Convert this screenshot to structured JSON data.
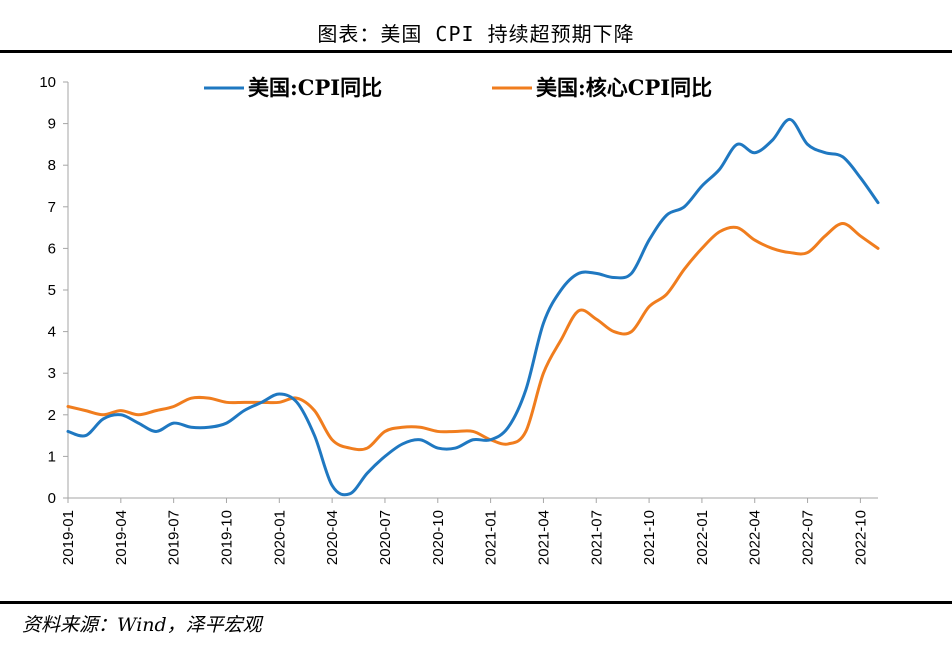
{
  "title": "图表：美国 CPI 持续超预期下降",
  "source": "资料来源：Wind，泽平宏观",
  "colors": {
    "cpi": "#1f78c1",
    "core": "#f07d1e",
    "axis": "#a6a6a6"
  },
  "chart_data": {
    "type": "line",
    "ylim": [
      0,
      10
    ],
    "y_ticks": [
      "0",
      "1",
      "2",
      "3",
      "4",
      "5",
      "6",
      "7",
      "8",
      "9",
      "10"
    ],
    "x_tick_labels": [
      "2019-01",
      "2019-04",
      "2019-07",
      "2019-10",
      "2020-01",
      "2020-04",
      "2020-07",
      "2020-10",
      "2021-01",
      "2021-04",
      "2021-07",
      "2021-10",
      "2022-01",
      "2022-04",
      "2022-07",
      "2022-10"
    ],
    "x": [
      "2019-01",
      "2019-02",
      "2019-03",
      "2019-04",
      "2019-05",
      "2019-06",
      "2019-07",
      "2019-08",
      "2019-09",
      "2019-10",
      "2019-11",
      "2019-12",
      "2020-01",
      "2020-02",
      "2020-03",
      "2020-04",
      "2020-05",
      "2020-06",
      "2020-07",
      "2020-08",
      "2020-09",
      "2020-10",
      "2020-11",
      "2020-12",
      "2021-01",
      "2021-02",
      "2021-03",
      "2021-04",
      "2021-05",
      "2021-06",
      "2021-07",
      "2021-08",
      "2021-09",
      "2021-10",
      "2021-11",
      "2021-12",
      "2022-01",
      "2022-02",
      "2022-03",
      "2022-04",
      "2022-05",
      "2022-06",
      "2022-07",
      "2022-08",
      "2022-09",
      "2022-10",
      "2022-11"
    ],
    "legend_position": "top",
    "series": [
      {
        "name": "美国:CPI同比",
        "values": [
          1.6,
          1.5,
          1.9,
          2.0,
          1.8,
          1.6,
          1.8,
          1.7,
          1.7,
          1.8,
          2.1,
          2.3,
          2.5,
          2.3,
          1.5,
          0.3,
          0.1,
          0.6,
          1.0,
          1.3,
          1.4,
          1.2,
          1.2,
          1.4,
          1.4,
          1.7,
          2.6,
          4.2,
          5.0,
          5.4,
          5.4,
          5.3,
          5.4,
          6.2,
          6.8,
          7.0,
          7.5,
          7.9,
          8.5,
          8.3,
          8.6,
          9.1,
          8.5,
          8.3,
          8.2,
          7.7,
          7.1
        ]
      },
      {
        "name": "美国:核心CPI同比",
        "values": [
          2.2,
          2.1,
          2.0,
          2.1,
          2.0,
          2.1,
          2.2,
          2.4,
          2.4,
          2.3,
          2.3,
          2.3,
          2.3,
          2.4,
          2.1,
          1.4,
          1.2,
          1.2,
          1.6,
          1.7,
          1.7,
          1.6,
          1.6,
          1.6,
          1.4,
          1.3,
          1.6,
          3.0,
          3.8,
          4.5,
          4.3,
          4.0,
          4.0,
          4.6,
          4.9,
          5.5,
          6.0,
          6.4,
          6.5,
          6.2,
          6.0,
          5.9,
          5.9,
          6.3,
          6.6,
          6.3,
          6.0
        ]
      }
    ]
  }
}
